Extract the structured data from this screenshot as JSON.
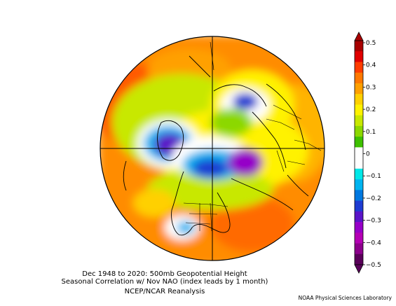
{
  "figure": {
    "title_line1": "Dec 1948 to 2020: 500mb Geopotential Height",
    "title_line2": "Seasonal Correlation w/ Nov NAO (index leads by 1 month)",
    "dataset": "NCEP/NCAR Reanalysis",
    "credit": "NOAA Physical Sciences Laboratory"
  },
  "colorbar": {
    "labels": [
      "0.5",
      "0.4",
      "0.3",
      "0.2",
      "0.1",
      "0",
      "−0.1",
      "−0.2",
      "−0.3",
      "−0.4",
      "−0.5"
    ],
    "colors": [
      "#a80000",
      "#e00000",
      "#ff3c00",
      "#ff7800",
      "#ffa000",
      "#ffd000",
      "#fff200",
      "#c8e800",
      "#8cd800",
      "#3ec000",
      "#ffffff",
      "#ffffff",
      "#00e8e8",
      "#00b4f0",
      "#0078e0",
      "#1e3cd2",
      "#5a14c8",
      "#9600c8",
      "#b400b4",
      "#8c008c",
      "#5a005a"
    ]
  },
  "map": {
    "projection": "north-polar-stereographic",
    "variable": "500mb geopotential height correlation"
  }
}
